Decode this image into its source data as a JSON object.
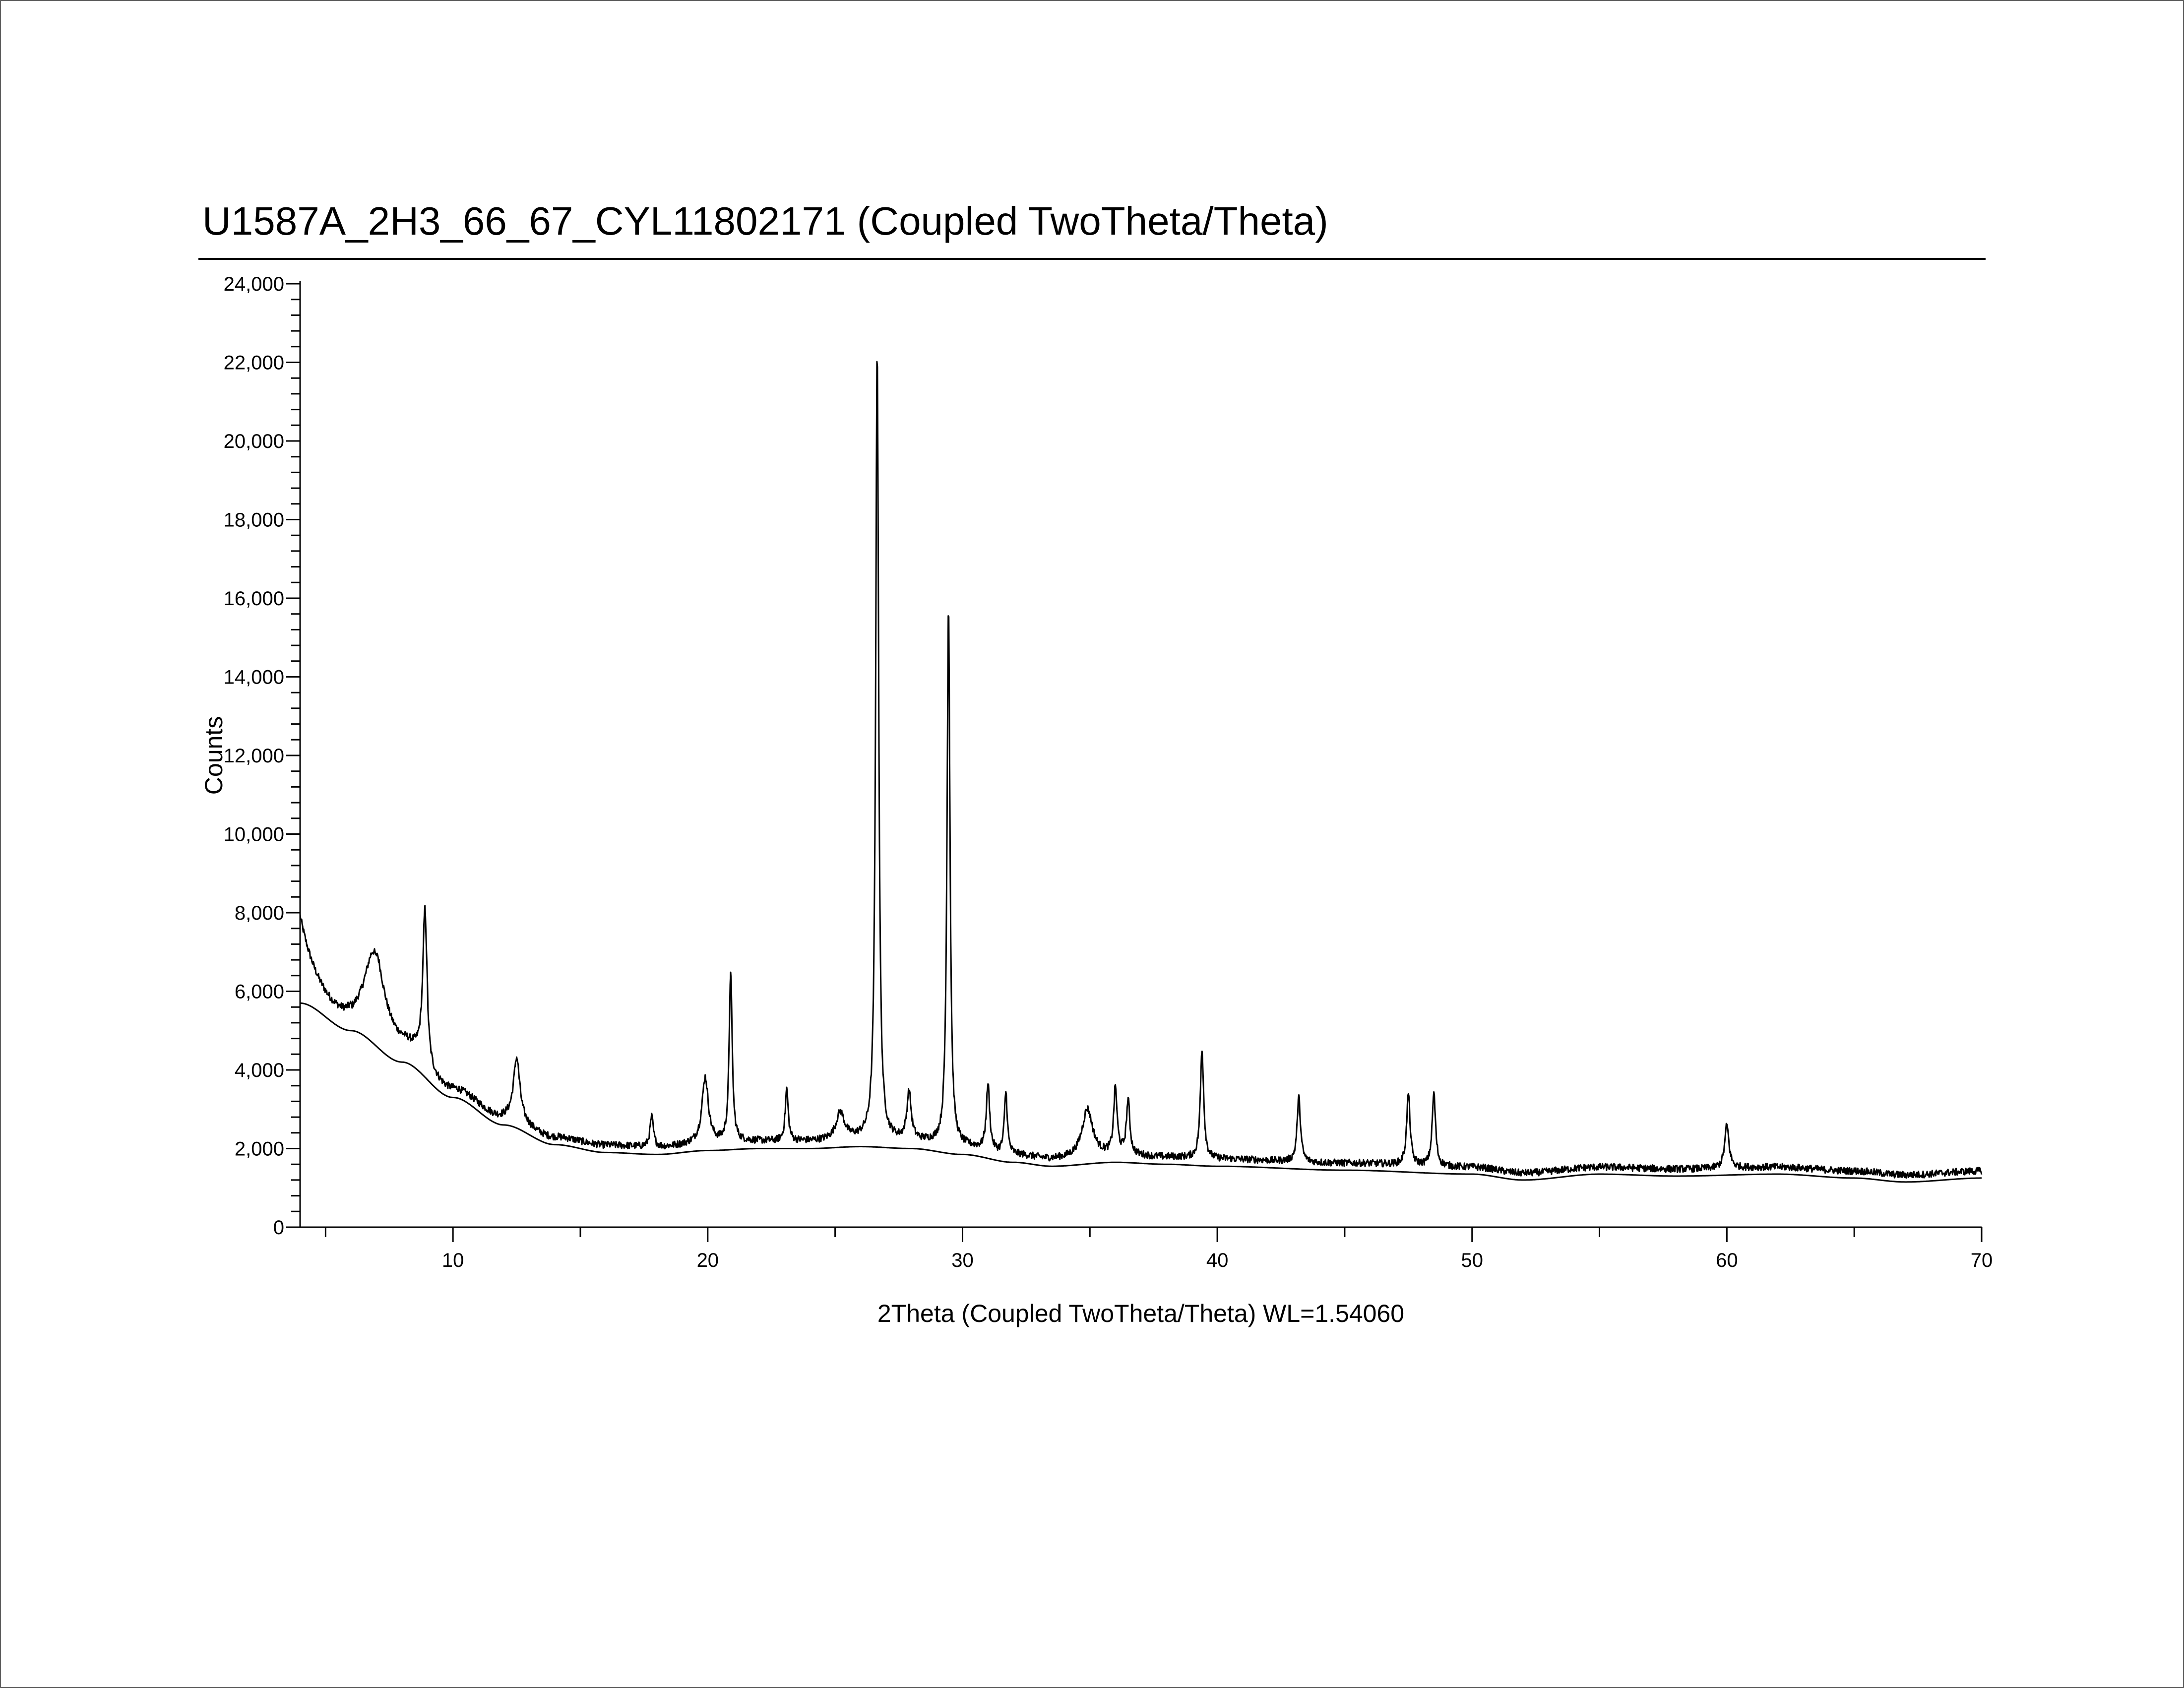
{
  "chart_data": {
    "type": "line",
    "title": "U1587A_2H3_66_67_CYL11802171 (Coupled TwoTheta/Theta)",
    "xlabel": "2Theta (Coupled TwoTheta/Theta) WL=1.54060",
    "ylabel": "Counts",
    "xlim": [
      4,
      70
    ],
    "ylim": [
      0,
      24000
    ],
    "x_ticks": [
      10,
      20,
      30,
      40,
      50,
      60,
      70
    ],
    "x_tick_labels": [
      "10",
      "20",
      "30",
      "40",
      "50",
      "60",
      "70"
    ],
    "y_ticks": [
      0,
      2000,
      4000,
      6000,
      8000,
      10000,
      12000,
      14000,
      16000,
      18000,
      20000,
      22000,
      24000
    ],
    "y_tick_labels": [
      "0",
      "2,000",
      "4,000",
      "6,000",
      "8,000",
      "10,000",
      "12,000",
      "14,000",
      "16,000",
      "18,000",
      "20,000",
      "22,000",
      "24,000"
    ],
    "grid": false,
    "legend": "none",
    "series": [
      {
        "role": "measured-pattern",
        "color": "#000000",
        "peaks": [
          {
            "x": 6.9,
            "y": 7000,
            "w": 0.45
          },
          {
            "x": 8.9,
            "y": 7800,
            "w": 0.1
          },
          {
            "x": 12.5,
            "y": 4300,
            "w": 0.15
          },
          {
            "x": 17.8,
            "y": 2800,
            "w": 0.08
          },
          {
            "x": 19.9,
            "y": 3800,
            "w": 0.15
          },
          {
            "x": 20.9,
            "y": 6500,
            "w": 0.07
          },
          {
            "x": 23.1,
            "y": 3500,
            "w": 0.07
          },
          {
            "x": 25.2,
            "y": 2900,
            "w": 0.2
          },
          {
            "x": 26.65,
            "y": 22300,
            "w": 0.07
          },
          {
            "x": 27.9,
            "y": 3400,
            "w": 0.1
          },
          {
            "x": 29.45,
            "y": 15800,
            "w": 0.07
          },
          {
            "x": 31.0,
            "y": 3600,
            "w": 0.08
          },
          {
            "x": 31.7,
            "y": 3400,
            "w": 0.07
          },
          {
            "x": 34.9,
            "y": 3000,
            "w": 0.25
          },
          {
            "x": 36.0,
            "y": 3500,
            "w": 0.08
          },
          {
            "x": 36.5,
            "y": 3200,
            "w": 0.08
          },
          {
            "x": 39.4,
            "y": 4500,
            "w": 0.08
          },
          {
            "x": 43.2,
            "y": 3300,
            "w": 0.08
          },
          {
            "x": 47.5,
            "y": 3400,
            "w": 0.08
          },
          {
            "x": 48.5,
            "y": 3400,
            "w": 0.08
          },
          {
            "x": 60.0,
            "y": 2600,
            "w": 0.1
          }
        ]
      },
      {
        "role": "background",
        "color": "#000000",
        "x": [
          4,
          6,
          8,
          10,
          12,
          14,
          16,
          18,
          20,
          22,
          24,
          26,
          28,
          30,
          32,
          33.5,
          36,
          38,
          40,
          45,
          50,
          52,
          55,
          58,
          62,
          65,
          67,
          70
        ],
        "y": [
          5700,
          5000,
          4200,
          3300,
          2600,
          2100,
          1900,
          1850,
          1950,
          2000,
          2000,
          2050,
          2000,
          1850,
          1650,
          1550,
          1650,
          1600,
          1550,
          1450,
          1350,
          1200,
          1350,
          1300,
          1350,
          1250,
          1150,
          1250
        ]
      }
    ]
  }
}
